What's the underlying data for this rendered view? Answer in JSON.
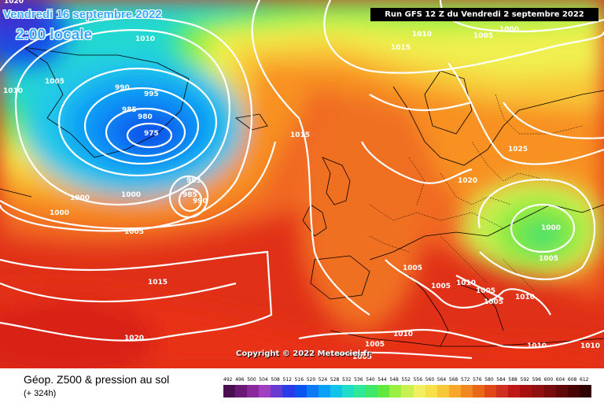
{
  "map": {
    "run_label": "Run GFS 12 Z du Vendredi 2 septembre 2022",
    "valid_date": "Vendredi 16 septembre 2022",
    "valid_time": "2:00 locale",
    "copyright": "Copyright © 2022 Meteociel.fr"
  },
  "footer": {
    "parameter": "Géop. Z500 & pression au sol",
    "lead_time": "(+ 324h)"
  },
  "legend": {
    "values": [
      "492",
      "496",
      "500",
      "504",
      "508",
      "512",
      "516",
      "520",
      "524",
      "528",
      "532",
      "536",
      "540",
      "544",
      "548",
      "552",
      "556",
      "560",
      "564",
      "568",
      "572",
      "576",
      "580",
      "584",
      "588",
      "592",
      "596",
      "600",
      "604",
      "608",
      "612"
    ],
    "colors": [
      "#4b0f4f",
      "#6a1a72",
      "#8a2a9a",
      "#a040c0",
      "#6a3bd0",
      "#2a3be8",
      "#0a55f0",
      "#0a7af5",
      "#0aa0f5",
      "#10c3e8",
      "#20ddc8",
      "#30e89a",
      "#40e86a",
      "#60ea40",
      "#9af040",
      "#c8f050",
      "#f0f060",
      "#f8e048",
      "#f8c838",
      "#f8a828",
      "#f08820",
      "#e86818",
      "#e04818",
      "#d03020",
      "#c01818",
      "#a81010",
      "#901010",
      "#780c0c",
      "#600808",
      "#480404",
      "#300202"
    ]
  },
  "pressure_labels": [
    "1020",
    "1010",
    "1005",
    "1010",
    "990",
    "995",
    "985",
    "980",
    "975",
    "995",
    "985",
    "990",
    "1000",
    "1000",
    "1005",
    "1015",
    "1015",
    "1020",
    "1010",
    "1005",
    "1000",
    "1015",
    "1025",
    "1020",
    "1000",
    "1005",
    "1005",
    "1010",
    "1005",
    "1005",
    "1005",
    "1010",
    "1010",
    "1005",
    "1010",
    "1000",
    "1010",
    "1005"
  ]
}
